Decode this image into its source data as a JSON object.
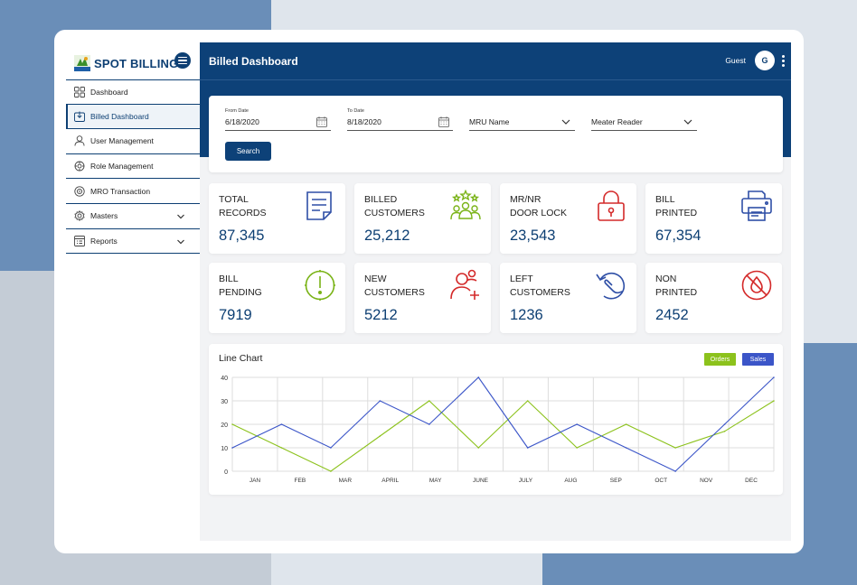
{
  "app": {
    "name": "SPOT BILLING",
    "page_title": "Billed Dashboard",
    "user_name": "Guest",
    "avatar_initial": "G"
  },
  "sidebar": {
    "items": [
      {
        "label": "Dashboard",
        "icon": "grid-icon",
        "active": false
      },
      {
        "label": "Billed Dashboard",
        "icon": "download-icon",
        "active": true
      },
      {
        "label": "User Management",
        "icon": "user-icon",
        "active": false
      },
      {
        "label": "Role Management",
        "icon": "role-gear-icon",
        "active": false
      },
      {
        "label": "MRO Transaction",
        "icon": "transaction-icon",
        "active": false
      },
      {
        "label": "Masters",
        "icon": "gear-icon",
        "active": false,
        "expandable": true
      },
      {
        "label": "Reports",
        "icon": "report-icon",
        "active": false,
        "expandable": true
      }
    ]
  },
  "filters": {
    "from_date_label": "From Date",
    "from_date_value": "6/18/2020",
    "to_date_label": "To Date",
    "to_date_value": "8/18/2020",
    "mru_label": "MRU Name",
    "reader_label": "Meater Reader",
    "search_label": "Search"
  },
  "stats": [
    {
      "label": "TOTAL\nRECORDS",
      "value": "87,345",
      "icon": "document-icon",
      "color": "#2f4fa6"
    },
    {
      "label": "BILLED\nCUSTOMERS",
      "value": "25,212",
      "icon": "customers-stars-icon",
      "color": "#7ab317"
    },
    {
      "label": "MR/NR\nDOOR LOCK",
      "value": "23,543",
      "icon": "padlock-icon",
      "color": "#d42a2a"
    },
    {
      "label": "BILL\nPRINTED",
      "value": "67,354",
      "icon": "printer-icon",
      "color": "#2f4fa6"
    },
    {
      "label": "BILL\nPENDING",
      "value": "7919",
      "icon": "pending-clock-icon",
      "color": "#7ab317"
    },
    {
      "label": "NEW\nCUSTOMERS",
      "value": "5212",
      "icon": "add-user-icon",
      "color": "#d42a2a"
    },
    {
      "label": "LEFT\nCUSTOMERS",
      "value": "1236",
      "icon": "left-customer-icon",
      "color": "#2f4fa6"
    },
    {
      "label": "NON\nPRINTED",
      "value": "2452",
      "icon": "no-print-icon",
      "color": "#d42a2a"
    }
  ],
  "chart_data": {
    "type": "line",
    "title": "Line Chart",
    "categories": [
      "JAN",
      "FEB",
      "MAR",
      "APRIL",
      "MAY",
      "JUNE",
      "JULY",
      "AUG",
      "SEP",
      "OCT",
      "NOV",
      "DEC"
    ],
    "series": [
      {
        "name": "Orders",
        "color": "#8cc21c",
        "values": [
          20,
          10,
          0,
          15,
          30,
          10,
          30,
          10,
          20,
          10,
          17,
          30
        ]
      },
      {
        "name": "Sales",
        "color": "#3b55c8",
        "values": [
          10,
          20,
          10,
          30,
          20,
          40,
          10,
          20,
          10,
          0,
          20,
          40
        ]
      }
    ],
    "ylim": [
      0,
      40
    ],
    "yticks": [
      0,
      10,
      20,
      30,
      40
    ],
    "grid": true,
    "legend": "top-right"
  }
}
